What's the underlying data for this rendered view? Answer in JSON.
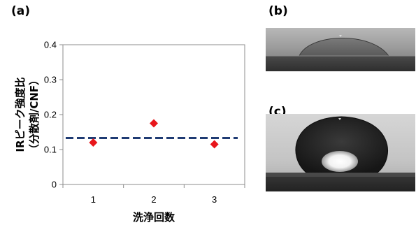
{
  "panels": {
    "a": "(a)",
    "b": "(b)",
    "c": "(c)"
  },
  "chart_data": {
    "type": "scatter",
    "title": "",
    "xlabel": "洗浄回数",
    "ylabel_line1": "IRピーク強度比",
    "ylabel_line2": "（分散剤/CNF）",
    "x_categories": [
      "1",
      "2",
      "3"
    ],
    "x_values": [
      1,
      2,
      3
    ],
    "y_values": [
      0.12,
      0.175,
      0.115
    ],
    "xlim": [
      0.5,
      3.5
    ],
    "ylim": [
      0,
      0.4
    ],
    "y_ticks": [
      0,
      0.1,
      0.2,
      0.3,
      0.4
    ],
    "y_tick_labels": [
      "0",
      "0.1",
      "0.2",
      "0.3",
      "0.4"
    ],
    "reference_line": {
      "y": 0.133,
      "style": "dashed",
      "color": "#1f3b73"
    },
    "marker": {
      "shape": "diamond",
      "color": "#e8161b"
    },
    "grid": false,
    "legend": "none"
  },
  "photos": {
    "b": {
      "subject": "water-droplet-low-contact-angle"
    },
    "c": {
      "subject": "water-droplet-high-contact-angle"
    }
  }
}
